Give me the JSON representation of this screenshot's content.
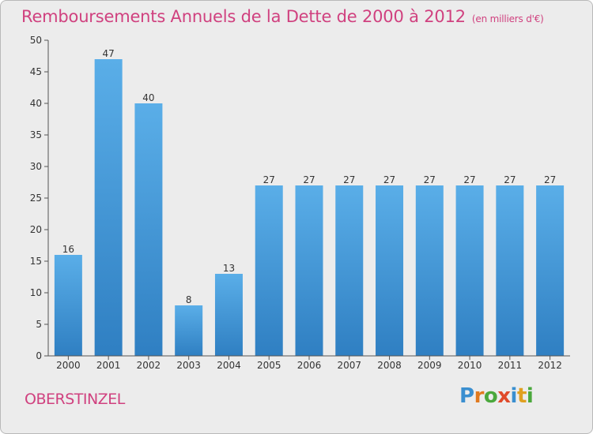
{
  "title": "Remboursements Annuels de la Dette de 2000 à 2012",
  "subtitle": "(en milliers d'€)",
  "location": "OBERSTINZEL",
  "logo": {
    "text": "Proxiti",
    "letters": [
      {
        "ch": "P",
        "color": "#3a8fd0"
      },
      {
        "ch": "r",
        "color": "#e07a1f"
      },
      {
        "ch": "o",
        "color": "#4aa83c"
      },
      {
        "ch": "x",
        "color": "#e04a2a"
      },
      {
        "ch": "i",
        "color": "#3a8fd0"
      },
      {
        "ch": "t",
        "color": "#e0a020"
      },
      {
        "ch": "i",
        "color": "#4aa83c"
      }
    ]
  },
  "colors": {
    "bar_light": "#5aaee8",
    "bar_dark": "#2f7fc2",
    "title": "#d0417f",
    "axis_text": "#333333"
  },
  "chart_data": {
    "type": "bar",
    "title": "Remboursements Annuels de la Dette de 2000 à 2012",
    "subtitle": "(en milliers d'€)",
    "categories": [
      "2000",
      "2001",
      "2002",
      "2003",
      "2004",
      "2005",
      "2006",
      "2007",
      "2008",
      "2009",
      "2010",
      "2011",
      "2012"
    ],
    "values": [
      16,
      47,
      40,
      8,
      13,
      27,
      27,
      27,
      27,
      27,
      27,
      27,
      27
    ],
    "ylim": [
      0,
      50
    ],
    "yticks": [
      0,
      5,
      10,
      15,
      20,
      25,
      30,
      35,
      40,
      45,
      50
    ],
    "grid": false,
    "data_labels": true
  }
}
